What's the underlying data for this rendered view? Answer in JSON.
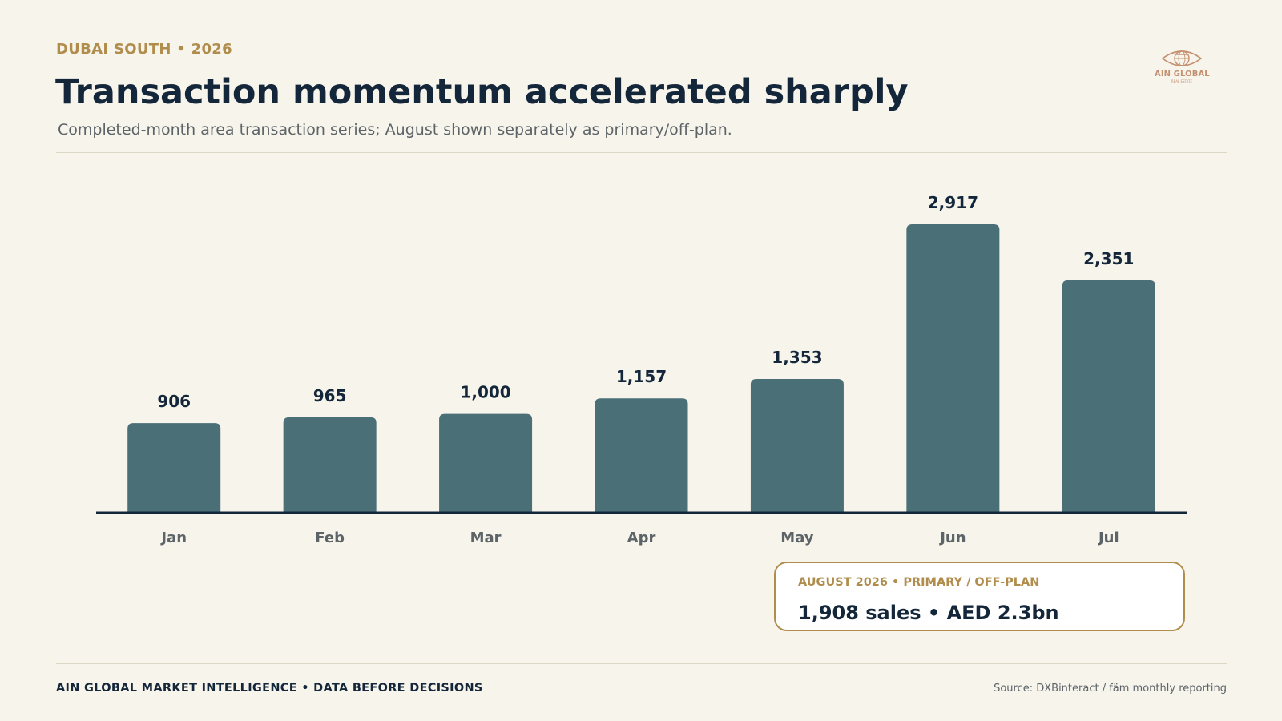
{
  "header": {
    "eyebrow": "DUBAI SOUTH • 2026",
    "title": "Transaction momentum accelerated sharply",
    "subtitle": "Completed-month area transaction series; August shown separately as primary/off-plan."
  },
  "logo": {
    "text": "AIN GLOBAL",
    "subtext": "REAL ESTATE",
    "icon": "eye-globe-icon"
  },
  "chart_data": {
    "type": "bar",
    "title": "",
    "xlabel": "",
    "ylabel": "",
    "categories": [
      "Jan",
      "Feb",
      "Mar",
      "Apr",
      "May",
      "Jun",
      "Jul"
    ],
    "values": [
      906,
      965,
      1000,
      1157,
      1353,
      2917,
      2351
    ],
    "data_labels": [
      "906",
      "965",
      "1,000",
      "1,157",
      "1,353",
      "2,917",
      "2,351"
    ],
    "ylim": [
      0,
      2917
    ],
    "grid": false,
    "legend": "none",
    "colors": {
      "bar": "#4a6f77",
      "baseline": "#14263a",
      "value_label": "#14263a",
      "tick_label": "#5d6468"
    }
  },
  "callout": {
    "label": "AUGUST 2026 • PRIMARY / OFF-PLAN",
    "value": "1,908 sales  •  AED 2.3bn"
  },
  "footer": {
    "left": "AIN GLOBAL MARKET INTELLIGENCE  •  DATA BEFORE DECISIONS",
    "right": "Source: DXBinteract / fäm monthly reporting"
  },
  "colors": {
    "background": "#f7f4ec",
    "accent_gold": "#b08d4c",
    "navy": "#14263a",
    "muted": "#5d6468",
    "rule": "#dcd7c3"
  }
}
